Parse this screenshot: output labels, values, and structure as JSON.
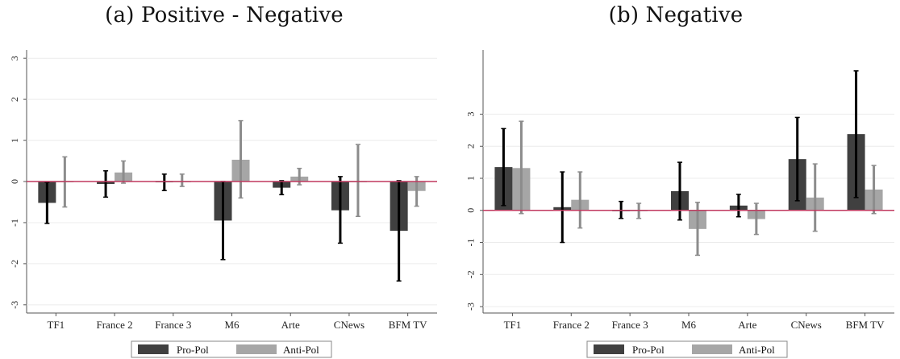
{
  "colors": {
    "pro_pol": "#404040",
    "anti_pol": "#a6a6a6",
    "zero_line": "#c0395f",
    "grid": "#ececec",
    "axis": "#555555"
  },
  "legend": {
    "pro_label": "Pro-Pol",
    "anti_label": "Anti-Pol"
  },
  "chart_data": [
    {
      "type": "bar",
      "title": "(a) Positive - Negative",
      "xlabel": "",
      "ylabel": "",
      "ylim": [
        -3.2,
        3.2
      ],
      "yticks": [
        3,
        2,
        1,
        0,
        -1,
        -2,
        -3
      ],
      "grid": true,
      "legend_position": "bottom",
      "categories": [
        "TF1",
        "France 2",
        "France 3",
        "M6",
        "Arte",
        "CNews",
        "BFM TV"
      ],
      "series": [
        {
          "name": "Pro-Pol",
          "values": [
            -0.52,
            -0.06,
            -0.02,
            -0.95,
            -0.15,
            -0.7,
            -1.2
          ],
          "ci_low": [
            -1.02,
            -0.38,
            -0.22,
            -1.9,
            -0.32,
            -1.5,
            -2.42
          ],
          "ci_high": [
            -0.02,
            0.26,
            0.18,
            0.0,
            0.02,
            0.12,
            0.02
          ]
        },
        {
          "name": "Anti-Pol",
          "values": [
            0.0,
            0.22,
            0.0,
            0.53,
            0.12,
            0.0,
            -0.23
          ],
          "ci_low": [
            -0.62,
            -0.04,
            -0.12,
            -0.4,
            -0.08,
            -0.85,
            -0.6
          ],
          "ci_high": [
            0.6,
            0.5,
            0.18,
            1.48,
            0.32,
            0.9,
            0.12
          ]
        }
      ]
    },
    {
      "type": "bar",
      "title": "(b) Negative",
      "xlabel": "",
      "ylabel": "",
      "ylim": [
        -3.2,
        5.0
      ],
      "yticks": [
        3,
        2,
        1,
        0,
        -1,
        -2,
        -3
      ],
      "grid": true,
      "legend_position": "bottom",
      "categories": [
        "TF1",
        "France 2",
        "France 3",
        "M6",
        "Arte",
        "CNews",
        "BFM TV"
      ],
      "series": [
        {
          "name": "Pro-Pol",
          "values": [
            1.35,
            0.1,
            0.0,
            0.6,
            0.15,
            1.6,
            2.38
          ],
          "ci_low": [
            0.15,
            -1.0,
            -0.25,
            -0.3,
            -0.2,
            0.3,
            0.4
          ],
          "ci_high": [
            2.55,
            1.2,
            0.28,
            1.5,
            0.5,
            2.9,
            4.35
          ]
        },
        {
          "name": "Anti-Pol",
          "values": [
            1.32,
            0.33,
            0.0,
            -0.58,
            -0.27,
            0.4,
            0.65
          ],
          "ci_low": [
            -0.1,
            -0.55,
            -0.25,
            -1.4,
            -0.75,
            -0.65,
            -0.1
          ],
          "ci_high": [
            2.78,
            1.2,
            0.22,
            0.25,
            0.22,
            1.45,
            1.4
          ]
        }
      ]
    }
  ]
}
